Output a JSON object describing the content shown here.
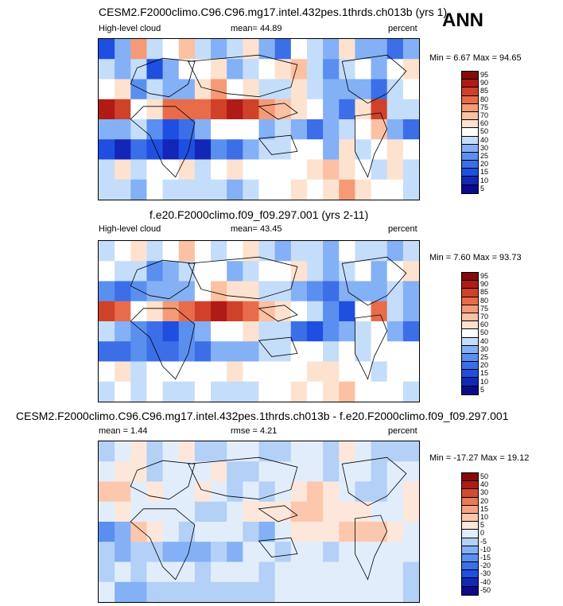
{
  "header": {
    "season": "ANN"
  },
  "panels": [
    {
      "title": "CESM2.F2000climo.C96.C96.mg17.intel.432pes.1thrds.ch013b (yrs 1)",
      "left_label": "High-level cloud",
      "center_label": "mean=  44.89",
      "units": "percent",
      "minmax": "Min =  6.67 Max = 94.65",
      "colorbar_levels": [
        "95",
        "90",
        "85",
        "80",
        "75",
        "70",
        "60",
        "50",
        "40",
        "30",
        "25",
        "20",
        "15",
        "10",
        "5"
      ]
    },
    {
      "title": "f.e20.F2000climo.f09_f09.297.001 (yrs 2-11)",
      "left_label": "High-level cloud",
      "center_label": "mean=  43.45",
      "units": "percent",
      "minmax": "Min =  7.60 Max = 93.73",
      "colorbar_levels": [
        "95",
        "90",
        "85",
        "80",
        "75",
        "70",
        "60",
        "50",
        "40",
        "30",
        "25",
        "20",
        "15",
        "10",
        "5"
      ]
    },
    {
      "title": "CESM2.F2000climo.C96.C96.mg17.intel.432pes.1thrds.ch013b - f.e20.F2000climo.f09_f09.297.001",
      "left_label": "mean =   1.44",
      "center_label": "rmse =   4.21",
      "units": "percent",
      "minmax": "Min = -17.27 Max = 19.12",
      "colorbar_levels": [
        "50",
        "40",
        "30",
        "20",
        "15",
        "10",
        "5",
        "0",
        "-5",
        "-10",
        "-15",
        "-20",
        "-30",
        "-40",
        "-50"
      ]
    }
  ],
  "colors": {
    "abs_scale": [
      "#0b0b8a",
      "#1227b8",
      "#1f4fe0",
      "#3c6ee8",
      "#5a8ff0",
      "#84b0f5",
      "#c4ddfa",
      "#ffffff",
      "#fde2cf",
      "#fcc0a2",
      "#f59a76",
      "#e86c4a",
      "#d0412a",
      "#b01b16",
      "#850a0a"
    ],
    "diff_scale": [
      "#0b0b8a",
      "#1227b8",
      "#1f4fe0",
      "#3c6ee8",
      "#5a8ff0",
      "#84b0f5",
      "#b3d0f7",
      "#e2edfc",
      "#fde7da",
      "#fcc7ad",
      "#f5a584",
      "#e87a56",
      "#d24a30",
      "#b01b16",
      "#850a0a"
    ]
  },
  "chart_data": [
    {
      "type": "heatmap",
      "title": "CESM2.F2000climo.C96.C96.mg17.intel.432pes.1thrds.ch013b (yrs 1)",
      "variable": "High-level cloud",
      "units": "percent",
      "mean": 44.89,
      "min": 6.67,
      "max": 94.65,
      "levels": [
        5,
        10,
        15,
        20,
        25,
        30,
        40,
        50,
        60,
        70,
        75,
        80,
        85,
        90,
        95
      ],
      "field": [
        [
          15,
          30,
          75,
          40,
          55,
          70,
          45,
          30,
          45,
          65,
          30,
          20,
          50,
          40,
          30,
          65,
          30,
          35,
          20,
          30
        ],
        [
          45,
          35,
          40,
          15,
          30,
          50,
          55,
          60,
          30,
          40,
          55,
          60,
          70,
          45,
          25,
          40,
          55,
          30,
          50,
          65
        ],
        [
          55,
          60,
          25,
          40,
          30,
          35,
          60,
          75,
          55,
          60,
          40,
          40,
          60,
          45,
          30,
          30,
          30,
          20,
          45,
          55
        ],
        [
          90,
          85,
          55,
          60,
          80,
          80,
          82,
          88,
          90,
          85,
          75,
          70,
          60,
          50,
          30,
          20,
          60,
          85,
          40,
          45
        ],
        [
          30,
          30,
          40,
          25,
          15,
          20,
          30,
          55,
          50,
          55,
          35,
          40,
          30,
          20,
          35,
          45,
          55,
          70,
          35,
          20
        ],
        [
          15,
          10,
          20,
          15,
          10,
          15,
          10,
          25,
          20,
          30,
          45,
          40,
          50,
          55,
          35,
          60,
          45,
          50,
          60,
          55
        ],
        [
          45,
          60,
          40,
          55,
          50,
          60,
          45,
          55,
          65,
          55,
          50,
          50,
          55,
          60,
          70,
          60,
          55,
          45,
          60,
          45
        ],
        [
          45,
          40,
          35,
          50,
          40,
          40,
          45,
          40,
          35,
          40,
          50,
          55,
          60,
          55,
          60,
          75,
          60,
          50,
          55,
          40
        ]
      ]
    },
    {
      "type": "heatmap",
      "title": "f.e20.F2000climo.f09_f09.297.001 (yrs 2-11)",
      "variable": "High-level cloud",
      "units": "percent",
      "mean": 43.45,
      "min": 7.6,
      "max": 93.73,
      "levels": [
        5,
        10,
        15,
        20,
        25,
        30,
        40,
        50,
        60,
        70,
        75,
        80,
        85,
        90,
        95
      ],
      "field": [
        [
          40,
          55,
          65,
          40,
          55,
          70,
          55,
          45,
          50,
          60,
          40,
          30,
          45,
          40,
          35,
          55,
          45,
          40,
          30,
          45
        ],
        [
          50,
          45,
          40,
          25,
          30,
          45,
          55,
          50,
          35,
          45,
          50,
          55,
          65,
          45,
          30,
          40,
          50,
          35,
          50,
          60
        ],
        [
          25,
          20,
          25,
          35,
          30,
          30,
          55,
          70,
          60,
          60,
          45,
          40,
          35,
          25,
          20,
          30,
          35,
          30,
          40,
          35
        ],
        [
          85,
          80,
          55,
          60,
          78,
          80,
          85,
          90,
          85,
          80,
          70,
          60,
          50,
          40,
          25,
          15,
          50,
          80,
          40,
          35
        ],
        [
          45,
          35,
          25,
          20,
          15,
          25,
          30,
          55,
          50,
          60,
          45,
          40,
          20,
          15,
          25,
          30,
          40,
          55,
          30,
          20
        ],
        [
          20,
          20,
          25,
          20,
          20,
          25,
          20,
          30,
          30,
          30,
          45,
          45,
          50,
          55,
          40,
          55,
          45,
          50,
          55,
          55
        ],
        [
          50,
          60,
          45,
          55,
          50,
          55,
          50,
          55,
          60,
          55,
          55,
          50,
          55,
          60,
          65,
          55,
          50,
          45,
          55,
          50
        ],
        [
          45,
          50,
          45,
          55,
          45,
          45,
          50,
          45,
          40,
          45,
          55,
          55,
          60,
          55,
          60,
          70,
          55,
          50,
          55,
          45
        ]
      ]
    },
    {
      "type": "heatmap",
      "title": "CESM2.F2000climo.C96.C96.mg17.intel.432pes.1thrds.ch013b - f.e20.F2000climo.f09_f09.297.001",
      "units": "percent",
      "mean": 1.44,
      "rmse": 4.21,
      "min": -17.27,
      "max": 19.12,
      "levels": [
        -50,
        -40,
        -30,
        -20,
        -15,
        -10,
        -5,
        0,
        5,
        10,
        15,
        20,
        30,
        40,
        50
      ],
      "field": [
        [
          -5,
          0,
          5,
          -5,
          2,
          5,
          -2,
          -5,
          0,
          3,
          -3,
          -5,
          3,
          0,
          -3,
          5,
          0,
          -2,
          -5,
          -3
        ],
        [
          3,
          5,
          6,
          -5,
          0,
          4,
          2,
          6,
          -3,
          -2,
          4,
          3,
          2,
          0,
          -3,
          0,
          4,
          -3,
          0,
          3
        ],
        [
          10,
          12,
          3,
          5,
          0,
          3,
          5,
          4,
          -3,
          0,
          -4,
          0,
          8,
          10,
          9,
          2,
          -3,
          -5,
          4,
          8
        ],
        [
          4,
          5,
          0,
          0,
          2,
          0,
          -2,
          -3,
          4,
          5,
          5,
          9,
          10,
          10,
          6,
          5,
          8,
          4,
          0,
          9
        ],
        [
          -12,
          -8,
          10,
          5,
          0,
          -4,
          0,
          0,
          0,
          -3,
          -9,
          0,
          9,
          5,
          8,
          10,
          12,
          14,
          5,
          0
        ],
        [
          -3,
          -8,
          -5,
          -5,
          -8,
          -8,
          -8,
          -4,
          -8,
          0,
          0,
          -4,
          0,
          0,
          -3,
          4,
          0,
          0,
          4,
          0
        ],
        [
          -3,
          0,
          -4,
          0,
          0,
          4,
          -3,
          0,
          4,
          0,
          -4,
          0,
          0,
          0,
          4,
          4,
          4,
          0,
          4,
          -3
        ],
        [
          0,
          -8,
          -8,
          -4,
          -4,
          -4,
          -4,
          -4,
          -4,
          -4,
          -4,
          0,
          0,
          0,
          0,
          4,
          4,
          0,
          0,
          -4
        ]
      ]
    }
  ]
}
